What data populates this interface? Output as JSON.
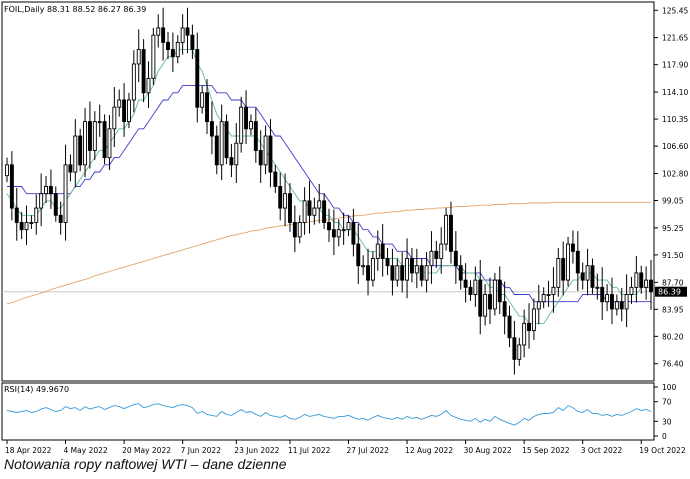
{
  "caption": "Notowania ropy naftowej WTI – dane dzienne",
  "chart_data": {
    "type": "candlestick",
    "title": "FOIL,Daily  88.31 88.52 86.27 86.39",
    "last_price": "86.39",
    "y_ticks": [
      "125.45",
      "121.65",
      "117.90",
      "114.10",
      "110.35",
      "106.60",
      "102.80",
      "99.05",
      "95.25",
      "91.50",
      "87.70",
      "83.95",
      "80.20",
      "76.40"
    ],
    "ylim": [
      74.0,
      126.6
    ],
    "x_ticks": [
      {
        "label": "18 Apr 2022",
        "i": 0
      },
      {
        "label": "4 May 2022",
        "i": 12
      },
      {
        "label": "20 May 2022",
        "i": 24
      },
      {
        "label": "7 Jun 2022",
        "i": 36
      },
      {
        "label": "23 Jun 2022",
        "i": 47
      },
      {
        "label": "11 Jul 2022",
        "i": 58
      },
      {
        "label": "27 Jul 2022",
        "i": 70
      },
      {
        "label": "12 Aug 2022",
        "i": 82
      },
      {
        "label": "30 Aug 2022",
        "i": 94
      },
      {
        "label": "15 Sep 2022",
        "i": 106
      },
      {
        "label": "3 Oct 2022",
        "i": 118
      },
      {
        "label": "19 Oct 2022",
        "i": 130
      }
    ],
    "close": [
      104,
      98,
      96,
      95,
      96,
      96,
      98,
      100,
      101,
      100,
      97,
      96,
      104,
      103,
      108,
      104,
      110,
      106,
      110,
      110,
      105,
      109,
      112,
      113,
      110,
      113,
      118,
      120,
      114,
      116,
      122,
      123,
      121,
      120,
      119,
      121,
      123,
      122,
      120,
      112,
      114,
      110,
      108,
      104,
      110,
      105,
      104,
      107,
      112,
      109,
      110,
      106,
      104,
      108,
      103,
      101,
      98,
      100,
      96,
      94,
      96,
      99,
      97,
      98,
      99,
      96,
      95,
      94,
      95,
      95,
      96,
      93,
      90,
      90,
      88,
      91,
      93,
      91,
      90,
      88,
      90,
      88,
      91,
      89,
      90,
      88,
      90,
      92,
      91,
      93,
      97,
      92,
      90,
      88,
      87,
      86,
      88,
      83,
      86,
      84,
      88,
      85,
      83,
      80,
      77,
      79,
      82,
      81,
      84,
      85,
      86,
      86,
      87,
      91,
      88,
      93,
      92,
      89,
      88,
      90,
      87,
      87,
      85,
      86,
      84,
      85,
      84,
      86,
      87,
      89,
      87,
      88,
      86.39
    ],
    "ma_fast": [
      100,
      99,
      98,
      97,
      97,
      97,
      97,
      98,
      99,
      99,
      98,
      98,
      99,
      100,
      101,
      102,
      103,
      104,
      105,
      106,
      106,
      107,
      108,
      109,
      109,
      110,
      111,
      113,
      113,
      114,
      115,
      117,
      118,
      119,
      119,
      120,
      120,
      120,
      120,
      118,
      117,
      115,
      113,
      111,
      110,
      109,
      108,
      108,
      108,
      108,
      108,
      108,
      107,
      106,
      105,
      104,
      103,
      102,
      101,
      100,
      99,
      99,
      98,
      98,
      98,
      97,
      97,
      96,
      96,
      95,
      95,
      95,
      94,
      93,
      92,
      92,
      92,
      91,
      91,
      91,
      91,
      90,
      90,
      90,
      90,
      89,
      89,
      89,
      89,
      90,
      90,
      90,
      90,
      90,
      89,
      89,
      89,
      88,
      88,
      87,
      87,
      86,
      86,
      85,
      84,
      83,
      83,
      82,
      82,
      82,
      82,
      83,
      84,
      85,
      86,
      87,
      88,
      88,
      89,
      89,
      89,
      88,
      88,
      88,
      87,
      87,
      86,
      86,
      86,
      86,
      87,
      87,
      87
    ],
    "ma_mid": [
      101,
      101,
      101,
      101,
      100,
      100,
      100,
      100,
      100,
      100,
      100,
      100,
      100,
      100,
      101,
      101,
      102,
      102,
      103,
      103,
      104,
      104,
      105,
      105,
      106,
      107,
      108,
      109,
      109,
      110,
      111,
      112,
      113,
      113,
      114,
      114,
      115,
      115,
      115,
      115,
      115,
      115,
      115,
      114,
      114,
      114,
      113,
      113,
      113,
      112,
      112,
      112,
      111,
      110,
      109,
      108,
      108,
      107,
      106,
      105,
      104,
      103,
      102,
      101,
      100,
      100,
      99,
      98,
      98,
      97,
      97,
      96,
      96,
      95,
      95,
      94,
      94,
      93,
      93,
      93,
      92,
      92,
      92,
      91,
      91,
      91,
      91,
      90,
      90,
      90,
      90,
      90,
      90,
      89,
      89,
      89,
      89,
      89,
      88,
      88,
      88,
      88,
      87,
      87,
      86,
      86,
      86,
      86,
      85,
      85,
      85,
      85,
      85,
      85,
      85,
      85,
      85,
      85,
      86,
      86,
      86,
      86,
      86,
      85,
      85,
      85,
      85,
      85,
      85,
      85,
      85,
      85,
      85
    ],
    "ma_slow": [
      84.7,
      84.9,
      85.1,
      85.4,
      85.6,
      85.8,
      86.0,
      86.2,
      86.4,
      86.7,
      86.9,
      87.1,
      87.3,
      87.5,
      87.7,
      87.9,
      88.1,
      88.3,
      88.6,
      88.8,
      89.0,
      89.2,
      89.4,
      89.6,
      89.8,
      90.0,
      90.2,
      90.4,
      90.6,
      90.8,
      91.0,
      91.2,
      91.4,
      91.6,
      91.8,
      92.0,
      92.2,
      92.4,
      92.6,
      92.8,
      93.0,
      93.2,
      93.4,
      93.6,
      93.8,
      94.0,
      94.2,
      94.3,
      94.5,
      94.6,
      94.8,
      94.9,
      95.0,
      95.2,
      95.3,
      95.4,
      95.5,
      95.6,
      95.7,
      95.8,
      95.9,
      96.0,
      96.1,
      96.2,
      96.3,
      96.3,
      96.4,
      96.5,
      96.6,
      96.7,
      96.8,
      96.9,
      97.0,
      97.0,
      97.1,
      97.2,
      97.3,
      97.3,
      97.4,
      97.5,
      97.5,
      97.6,
      97.7,
      97.7,
      97.8,
      97.8,
      97.9,
      97.9,
      98.0,
      98.0,
      98.1,
      98.1,
      98.2,
      98.2,
      98.2,
      98.3,
      98.3,
      98.4,
      98.4,
      98.4,
      98.5,
      98.5,
      98.5,
      98.6,
      98.6,
      98.6,
      98.6,
      98.7,
      98.7,
      98.7,
      98.7,
      98.7,
      98.8,
      98.8,
      98.8,
      98.8,
      98.8,
      98.8,
      98.8,
      98.8,
      98.8,
      98.8,
      98.8,
      98.8,
      98.8,
      98.8,
      98.8,
      98.8,
      98.8,
      98.8,
      98.8,
      98.8,
      98.8
    ],
    "ma_colors": {
      "fast": "#5fb99a",
      "mid": "#3b3bcc",
      "slow": "#e3a468"
    },
    "rsi": {
      "label": "RSI(14) 49.9670",
      "y_ticks": [
        "100",
        "70",
        "30",
        "0"
      ],
      "ylim": [
        0,
        100
      ],
      "color": "#3a9ad9",
      "values": [
        52,
        50,
        48,
        50,
        52,
        48,
        50,
        55,
        58,
        54,
        50,
        52,
        60,
        56,
        58,
        52,
        60,
        55,
        58,
        60,
        54,
        58,
        62,
        60,
        56,
        60,
        64,
        66,
        58,
        60,
        64,
        66,
        62,
        60,
        58,
        62,
        64,
        62,
        58,
        46,
        50,
        44,
        42,
        40,
        50,
        44,
        42,
        48,
        54,
        48,
        50,
        44,
        40,
        48,
        42,
        40,
        38,
        42,
        36,
        34,
        38,
        44,
        40,
        42,
        44,
        40,
        38,
        36,
        40,
        40,
        42,
        38,
        34,
        36,
        32,
        38,
        42,
        38,
        36,
        34,
        38,
        34,
        40,
        36,
        38,
        34,
        38,
        42,
        40,
        44,
        52,
        42,
        38,
        34,
        32,
        30,
        36,
        28,
        34,
        30,
        40,
        34,
        30,
        26,
        22,
        28,
        36,
        32,
        40,
        44,
        46,
        46,
        48,
        58,
        52,
        62,
        58,
        50,
        48,
        54,
        46,
        46,
        42,
        44,
        40,
        44,
        42,
        46,
        50,
        56,
        52,
        54,
        50
      ]
    },
    "colors": {
      "candle": "#000000",
      "axis": "#000000",
      "grid_ref": "#c8c8c8"
    }
  }
}
